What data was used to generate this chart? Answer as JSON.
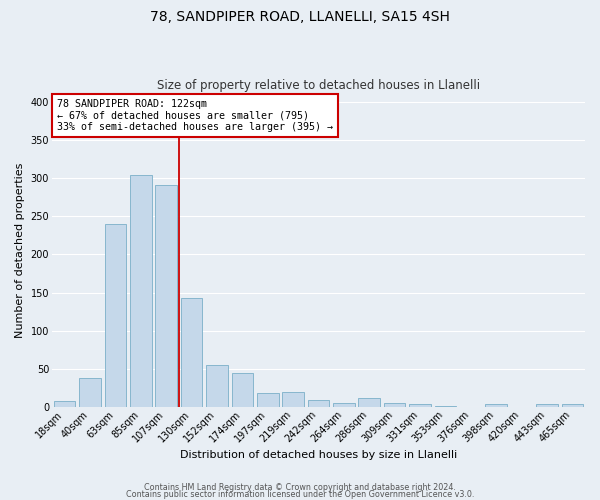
{
  "title": "78, SANDPIPER ROAD, LLANELLI, SA15 4SH",
  "subtitle": "Size of property relative to detached houses in Llanelli",
  "xlabel": "Distribution of detached houses by size in Llanelli",
  "ylabel": "Number of detached properties",
  "bar_labels": [
    "18sqm",
    "40sqm",
    "63sqm",
    "85sqm",
    "107sqm",
    "130sqm",
    "152sqm",
    "174sqm",
    "197sqm",
    "219sqm",
    "242sqm",
    "264sqm",
    "286sqm",
    "309sqm",
    "331sqm",
    "353sqm",
    "376sqm",
    "398sqm",
    "420sqm",
    "443sqm",
    "465sqm"
  ],
  "bar_values": [
    8,
    38,
    240,
    305,
    291,
    143,
    55,
    44,
    18,
    19,
    9,
    5,
    12,
    5,
    3,
    1,
    0,
    3,
    0,
    4,
    4
  ],
  "bar_color": "#c5d8ea",
  "bar_edge_color": "#7aafc8",
  "ylim": [
    0,
    410
  ],
  "yticks": [
    0,
    50,
    100,
    150,
    200,
    250,
    300,
    350,
    400
  ],
  "property_line_color": "#cc0000",
  "annotation_text": "78 SANDPIPER ROAD: 122sqm\n← 67% of detached houses are smaller (795)\n33% of semi-detached houses are larger (395) →",
  "annotation_box_color": "#ffffff",
  "annotation_box_edge_color": "#cc0000",
  "footer_line1": "Contains HM Land Registry data © Crown copyright and database right 2024.",
  "footer_line2": "Contains public sector information licensed under the Open Government Licence v3.0.",
  "background_color": "#e8eef4",
  "grid_color": "#ffffff",
  "title_fontsize": 10,
  "subtitle_fontsize": 8.5,
  "tick_fontsize": 7,
  "ylabel_fontsize": 8,
  "xlabel_fontsize": 8,
  "footer_fontsize": 5.8
}
